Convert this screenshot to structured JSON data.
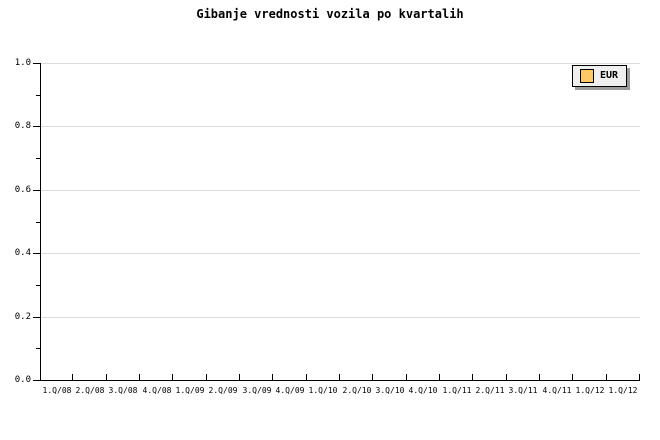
{
  "page": {
    "background": "#ffffff"
  },
  "chart_data": {
    "type": "line",
    "title": "Gibanje vrednosti vozila po kvartalih",
    "categories": [
      "1.Q/08",
      "2.Q/08",
      "3.Q/08",
      "4.Q/08",
      "1.Q/09",
      "2.Q/09",
      "3.Q/09",
      "4.Q/09",
      "1.Q/10",
      "2.Q/10",
      "3.Q/10",
      "4.Q/10",
      "1.Q/11",
      "2.Q/11",
      "3.Q/11",
      "4.Q/11",
      "1.Q/12",
      "1.Q/12"
    ],
    "series": [
      {
        "name": "EUR",
        "color": "#ffc866",
        "values": []
      }
    ],
    "xlabel": "",
    "ylabel": "",
    "ylim": [
      0.0,
      1.0
    ],
    "y_axis": {
      "major_ticks": [
        "1.0",
        "0.8",
        "0.6",
        "0.4",
        "0.2",
        "0.0"
      ],
      "minor_tick_step": 0.1
    },
    "grid": "horizontal-major-only",
    "legend_position": "top-right"
  },
  "legend": {
    "label": "EUR",
    "swatch_color": "#ffc866",
    "background": "#efefef",
    "shadow_color": "#9c9c9c"
  },
  "colors": {
    "axis": "#000000",
    "gridline": "#dcdcdc",
    "text": "#000000",
    "background": "#ffffff"
  }
}
